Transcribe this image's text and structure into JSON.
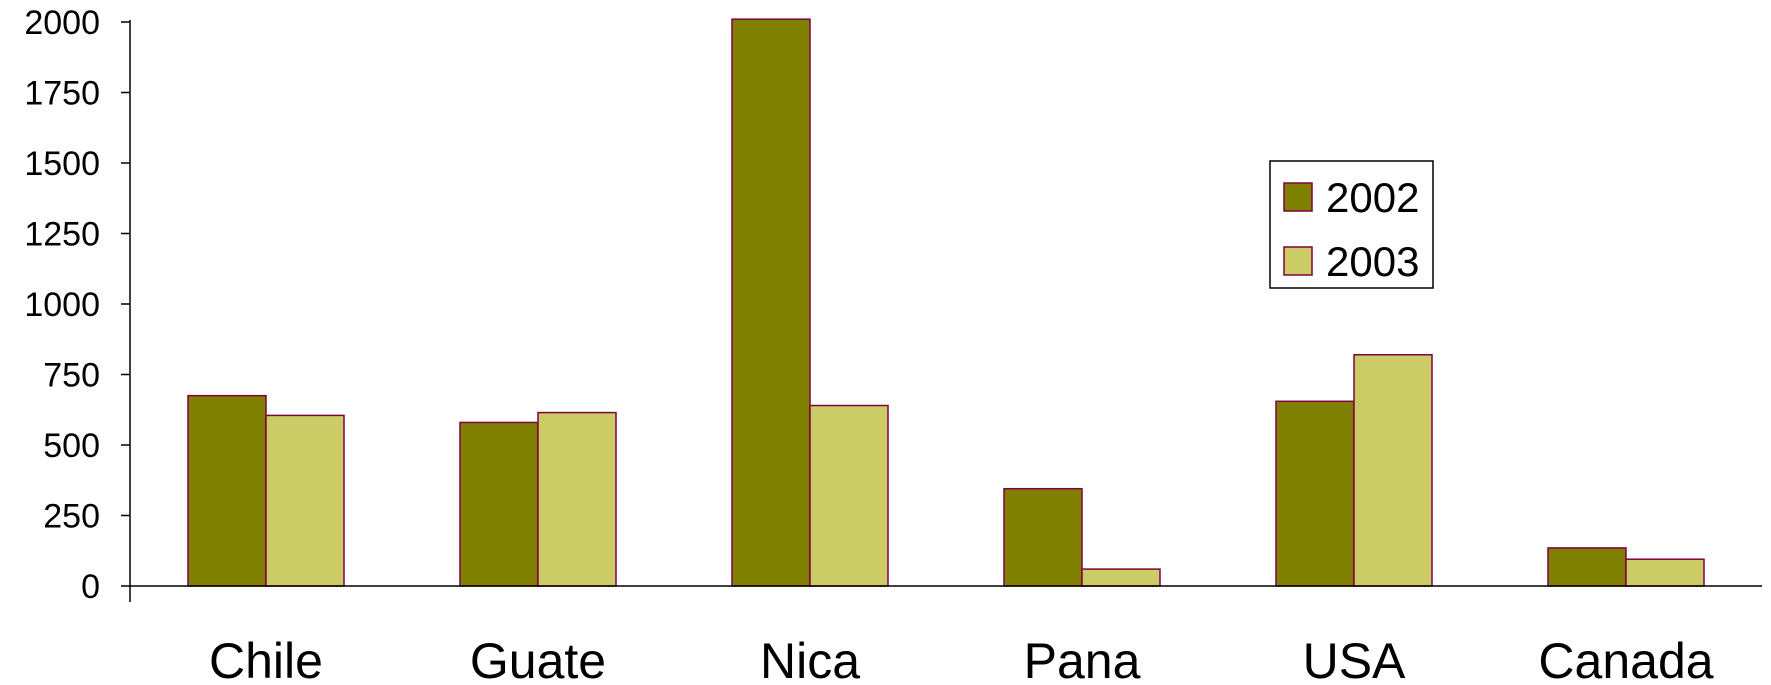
{
  "chart_data": {
    "type": "bar",
    "title": "",
    "xlabel": "",
    "ylabel": "",
    "ylim": [
      0,
      2000
    ],
    "yticks": [
      0,
      250,
      500,
      750,
      1000,
      1250,
      1500,
      1750,
      2000
    ],
    "grid": false,
    "legend_position": "right",
    "categories": [
      "Chile",
      "Guate",
      "Nica",
      "Pana",
      "USA",
      "Canada"
    ],
    "series": [
      {
        "name": "2002",
        "color": "#808000",
        "values": [
          675,
          580,
          2010,
          345,
          655,
          135
        ]
      },
      {
        "name": "2003",
        "color": "#cccc66",
        "values": [
          605,
          615,
          640,
          60,
          820,
          95
        ]
      }
    ],
    "bar_edge_color": "#800040"
  }
}
